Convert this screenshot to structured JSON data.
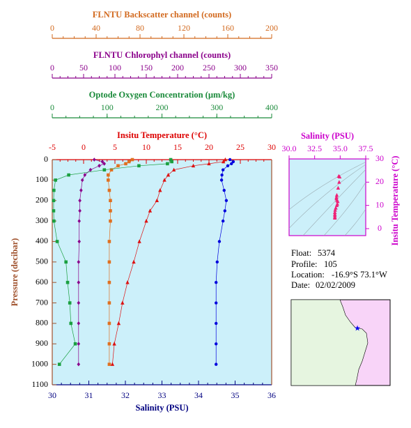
{
  "chart_data": [
    {
      "type": "profile",
      "ylabel": "Pressure (decibar)",
      "ylim": [
        0,
        1100
      ],
      "inverted": true,
      "yticks": [
        0,
        100,
        200,
        300,
        400,
        500,
        600,
        700,
        800,
        900,
        1000,
        1100
      ],
      "y_color": "#a0522d",
      "background": "#ccf0fa",
      "x_axes": [
        {
          "label": "FLNTU Backscatter channel (counts)",
          "xlim": [
            0,
            200
          ],
          "xticks": [
            0,
            40,
            80,
            120,
            160,
            200
          ],
          "color": "#d2691e"
        },
        {
          "label": "FLNTU Chlorophyl channel (counts)",
          "xlim": [
            0,
            350
          ],
          "xticks": [
            0,
            50,
            100,
            150,
            200,
            250,
            300,
            350
          ],
          "color": "#8b008b"
        },
        {
          "label": "Optode Oxygen Concentration (µm/kg)",
          "xlim": [
            0,
            400
          ],
          "xticks": [
            0,
            100,
            200,
            300,
            400
          ],
          "color": "#1a8a3a"
        },
        {
          "label": "Insitu Temperature (°C)",
          "xlim": [
            -5,
            30
          ],
          "xticks": [
            -5,
            0,
            5,
            10,
            15,
            20,
            25,
            30
          ],
          "color": "#dd0000"
        },
        {
          "label": "Salinity (PSU)",
          "xlim": [
            30,
            36
          ],
          "xticks": [
            30,
            31,
            32,
            33,
            34,
            35,
            36
          ],
          "color": "#000080"
        }
      ],
      "pressure": [
        0,
        10,
        20,
        30,
        50,
        75,
        100,
        150,
        200,
        250,
        300,
        400,
        500,
        600,
        700,
        800,
        900,
        1000
      ],
      "series": [
        {
          "x_axis": 0,
          "marker": "square",
          "color": "#e07020",
          "values": [
            73,
            70,
            67,
            60,
            54,
            51,
            51,
            52,
            53,
            53,
            53,
            52,
            52,
            52,
            52,
            52,
            52,
            52
          ]
        },
        {
          "x_axis": 1,
          "marker": "diamond",
          "color": "#8b008b",
          "values": [
            67,
            80,
            83,
            75,
            61,
            52,
            48,
            46,
            44,
            44,
            43,
            43,
            42,
            42,
            42,
            42,
            42,
            42
          ]
        },
        {
          "x_axis": 2,
          "marker": "square",
          "color": "#1aa040",
          "values": [
            216,
            218,
            210,
            158,
            95,
            30,
            6,
            3,
            2.5,
            2.5,
            3,
            9,
            25,
            28,
            32,
            34,
            42,
            13
          ]
        },
        {
          "x_axis": 3,
          "marker": "triangle",
          "color": "#dd1111",
          "values": [
            22.6,
            22.3,
            20,
            17.5,
            14.4,
            13.5,
            12.9,
            12.2,
            11.7,
            10.6,
            10,
            8.9,
            8,
            7,
            6.2,
            5.6,
            4.9,
            4.6
          ]
        },
        {
          "x_axis": 4,
          "marker": "circle",
          "color": "#0000dd",
          "values": [
            34.86,
            34.95,
            34.9,
            34.8,
            34.67,
            34.64,
            34.63,
            34.7,
            34.76,
            34.72,
            34.67,
            34.57,
            34.51,
            34.48,
            34.48,
            34.48,
            34.48,
            34.48
          ]
        }
      ]
    },
    {
      "type": "scatter",
      "xlabel": "Salinity (PSU)",
      "ylabel": "Insitu Temperature (°C)",
      "axis_color": "#cc00cc",
      "background": "#ccf0fa",
      "xlim": [
        30,
        37.5
      ],
      "xticks": [
        {
          "value": 30,
          "label": "30.0"
        },
        32.5,
        {
          "value": 35,
          "label": "35.0"
        },
        37.5
      ],
      "ylim": [
        -3,
        30
      ],
      "yticks": [
        0,
        10,
        20,
        30
      ],
      "color": "#ee2277",
      "x": [
        34.86,
        34.95,
        34.9,
        34.8,
        34.67,
        34.64,
        34.63,
        34.7,
        34.76,
        34.72,
        34.67,
        34.57,
        34.51,
        34.48,
        34.48,
        34.48,
        34.48,
        34.48
      ],
      "y": [
        22.6,
        22.3,
        20,
        17.5,
        14.4,
        13.5,
        12.9,
        12.2,
        11.7,
        10.6,
        10,
        8.9,
        8,
        7,
        6.2,
        5.6,
        4.9,
        4.6
      ]
    }
  ],
  "info": {
    "float": {
      "label": "Float:",
      "value": "5374"
    },
    "profile": {
      "label": "Profile:",
      "value": "105"
    },
    "location": {
      "label": "Location:",
      "value": "-16.9°S  73.1°W"
    },
    "date": {
      "label": "Date:",
      "value": "02/02/2009"
    }
  }
}
